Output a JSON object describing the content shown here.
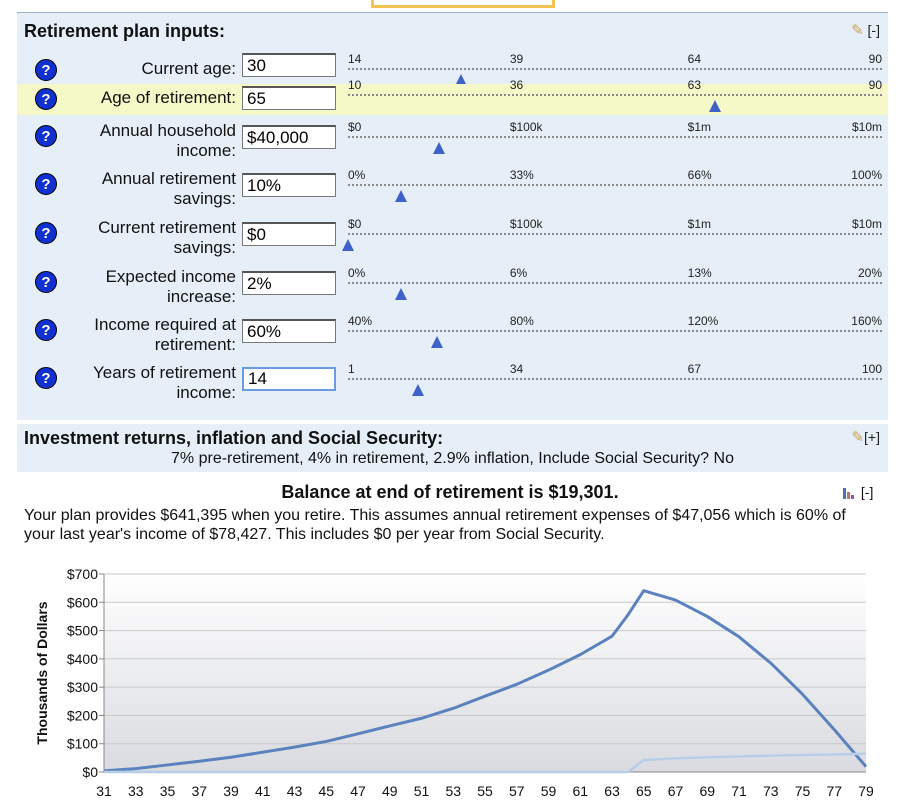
{
  "inputs": {
    "title": "Retirement plan inputs:",
    "toggle": "[-]",
    "fields": [
      {
        "label": [
          "Current age:"
        ],
        "value": "30",
        "ticks": [
          "14",
          "39",
          "64",
          "90"
        ],
        "level": 0.211,
        "highlight": false
      },
      {
        "label": [
          "Age of retirement:"
        ],
        "value": "65",
        "ticks": [
          "10",
          "36",
          "63",
          "90"
        ],
        "level": 0.688,
        "highlight": true
      },
      {
        "label": [
          "Annual household",
          "income:"
        ],
        "value": "$40,000",
        "ticks": [
          "$0",
          "$100k",
          "$1m",
          "$10m"
        ],
        "level": 0.17,
        "highlight": false
      },
      {
        "label": [
          "Annual retirement",
          "savings:"
        ],
        "value": "10%",
        "ticks": [
          "0%",
          "33%",
          "66%",
          "100%"
        ],
        "level": 0.1,
        "highlight": false
      },
      {
        "label": [
          "Current retirement",
          "savings:"
        ],
        "value": "$0",
        "ticks": [
          "$0",
          "$100k",
          "$1m",
          "$10m"
        ],
        "level": 0.0,
        "highlight": false
      },
      {
        "label": [
          "Expected income",
          "increase:"
        ],
        "value": "2%",
        "ticks": [
          "0%",
          "6%",
          "13%",
          "20%"
        ],
        "level": 0.1,
        "highlight": false
      },
      {
        "label": [
          "Income required at",
          "retirement:"
        ],
        "value": "60%",
        "ticks": [
          "40%",
          "80%",
          "120%",
          "160%"
        ],
        "level": 0.167,
        "highlight": false
      },
      {
        "label": [
          "Years of retirement",
          "income:"
        ],
        "value": "14",
        "ticks": [
          "1",
          "34",
          "67",
          "100"
        ],
        "level": 0.131,
        "highlight": false,
        "active": true
      }
    ]
  },
  "returns": {
    "title": "Investment returns, inflation and Social Security:",
    "toggle": "[+]",
    "summary": "7% pre-retirement, 4% in retirement, 2.9% inflation, Include Social Security? No"
  },
  "balance": {
    "title": "Balance at end of retirement is $19,301.",
    "toggle": "[-]",
    "summary": "Your plan provides $641,395 when you retire. This assumes annual retirement expenses of $47,056 which is 60% of your last year's income of $78,427. This includes $0 per year from Social Security."
  },
  "chart_data": {
    "type": "line",
    "ylabel": "Thousands of Dollars",
    "ylim": [
      0,
      700
    ],
    "yticks": [
      "$0",
      "$100",
      "$200",
      "$300",
      "$400",
      "$500",
      "$600",
      "$700"
    ],
    "xticks": [
      "31",
      "33",
      "35",
      "37",
      "39",
      "41",
      "43",
      "45",
      "47",
      "49",
      "51",
      "53",
      "55",
      "57",
      "59",
      "61",
      "63",
      "65",
      "67",
      "69",
      "71",
      "73",
      "75",
      "77",
      "79"
    ],
    "grid": true,
    "series": [
      {
        "color": "#5b82be",
        "x": [
          31,
          33,
          35,
          37,
          39,
          41,
          43,
          45,
          47,
          49,
          51,
          53,
          55,
          57,
          59,
          61,
          63,
          64,
          65,
          67,
          69,
          71,
          73,
          75,
          77,
          79
        ],
        "values": [
          4,
          12,
          25,
          38,
          52,
          70,
          88,
          108,
          135,
          163,
          190,
          225,
          268,
          310,
          360,
          415,
          480,
          555,
          641,
          608,
          550,
          478,
          385,
          275,
          150,
          19
        ]
      },
      {
        "color": "#b8cde8",
        "x": [
          31,
          63,
          64,
          65,
          67,
          69,
          71,
          73,
          75,
          77,
          79
        ],
        "values": [
          0,
          0,
          0,
          42,
          48,
          52,
          55,
          58,
          60,
          62,
          65
        ]
      }
    ]
  }
}
